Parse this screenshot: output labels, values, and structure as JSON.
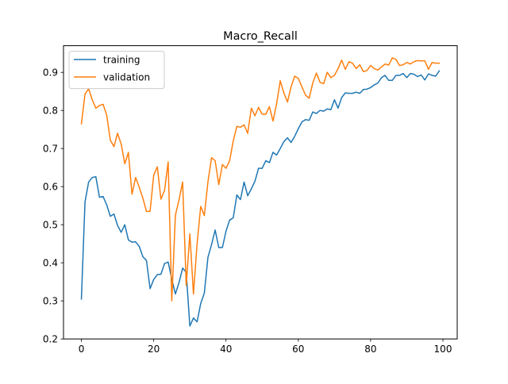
{
  "chart_data": {
    "type": "line",
    "title": "Macro_Recall",
    "xlabel": "",
    "ylabel": "",
    "xlim": [
      -4.95,
      103.95
    ],
    "ylim": [
      0.2,
      0.97
    ],
    "xticks": [
      0,
      20,
      40,
      60,
      80,
      100
    ],
    "yticks": [
      0.2,
      0.3,
      0.4,
      0.5,
      0.6,
      0.7,
      0.8,
      0.9
    ],
    "xtick_labels": [
      "0",
      "20",
      "40",
      "60",
      "80",
      "100"
    ],
    "ytick_labels": [
      "0.2",
      "0.3",
      "0.4",
      "0.5",
      "0.6",
      "0.7",
      "0.8",
      "0.9"
    ],
    "grid": false,
    "legend_position": "top-left",
    "x": [
      0,
      1,
      2,
      3,
      4,
      5,
      6,
      7,
      8,
      9,
      10,
      11,
      12,
      13,
      14,
      15,
      16,
      17,
      18,
      19,
      20,
      21,
      22,
      23,
      24,
      25,
      26,
      27,
      28,
      29,
      30,
      31,
      32,
      33,
      34,
      35,
      36,
      37,
      38,
      39,
      40,
      41,
      42,
      43,
      44,
      45,
      46,
      47,
      48,
      49,
      50,
      51,
      52,
      53,
      54,
      55,
      56,
      57,
      58,
      59,
      60,
      61,
      62,
      63,
      64,
      65,
      66,
      67,
      68,
      69,
      70,
      71,
      72,
      73,
      74,
      75,
      76,
      77,
      78,
      79,
      80,
      81,
      82,
      83,
      84,
      85,
      86,
      87,
      88,
      89,
      90,
      91,
      92,
      93,
      94,
      95,
      96,
      97,
      98,
      99
    ],
    "series": [
      {
        "name": "training",
        "color": "#1f77b4",
        "values": [
          0.305,
          0.56,
          0.612,
          0.624,
          0.626,
          0.572,
          0.574,
          0.552,
          0.522,
          0.528,
          0.498,
          0.48,
          0.5,
          0.46,
          0.454,
          0.455,
          0.443,
          0.416,
          0.406,
          0.332,
          0.356,
          0.369,
          0.37,
          0.398,
          0.402,
          0.357,
          0.318,
          0.348,
          0.386,
          0.375,
          0.234,
          0.255,
          0.245,
          0.293,
          0.32,
          0.414,
          0.448,
          0.486,
          0.44,
          0.44,
          0.483,
          0.512,
          0.518,
          0.578,
          0.566,
          0.612,
          0.576,
          0.594,
          0.614,
          0.648,
          0.648,
          0.668,
          0.663,
          0.69,
          0.683,
          0.7,
          0.718,
          0.728,
          0.716,
          0.732,
          0.752,
          0.77,
          0.776,
          0.774,
          0.796,
          0.792,
          0.8,
          0.798,
          0.804,
          0.802,
          0.828,
          0.806,
          0.834,
          0.846,
          0.845,
          0.845,
          0.848,
          0.845,
          0.855,
          0.856,
          0.86,
          0.867,
          0.872,
          0.886,
          0.892,
          0.879,
          0.879,
          0.892,
          0.892,
          0.897,
          0.886,
          0.897,
          0.895,
          0.889,
          0.893,
          0.88,
          0.896,
          0.892,
          0.89,
          0.904
        ]
      },
      {
        "name": "validation",
        "color": "#ff7f0e",
        "values": [
          0.765,
          0.843,
          0.857,
          0.828,
          0.806,
          0.813,
          0.816,
          0.788,
          0.722,
          0.705,
          0.74,
          0.712,
          0.66,
          0.69,
          0.58,
          0.624,
          0.598,
          0.57,
          0.535,
          0.535,
          0.63,
          0.652,
          0.567,
          0.59,
          0.665,
          0.3,
          0.525,
          0.565,
          0.612,
          0.34,
          0.476,
          0.318,
          0.45,
          0.548,
          0.524,
          0.612,
          0.676,
          0.668,
          0.605,
          0.658,
          0.648,
          0.668,
          0.72,
          0.758,
          0.756,
          0.762,
          0.74,
          0.806,
          0.786,
          0.808,
          0.79,
          0.79,
          0.81,
          0.772,
          0.818,
          0.878,
          0.846,
          0.822,
          0.862,
          0.89,
          0.884,
          0.862,
          0.84,
          0.832,
          0.872,
          0.898,
          0.874,
          0.87,
          0.9,
          0.886,
          0.892,
          0.91,
          0.932,
          0.908,
          0.928,
          0.924,
          0.91,
          0.92,
          0.902,
          0.905,
          0.918,
          0.91,
          0.906,
          0.914,
          0.922,
          0.919,
          0.938,
          0.934,
          0.918,
          0.92,
          0.926,
          0.922,
          0.928,
          0.931,
          0.93,
          0.93,
          0.908,
          0.926,
          0.924,
          0.924
        ]
      }
    ]
  }
}
